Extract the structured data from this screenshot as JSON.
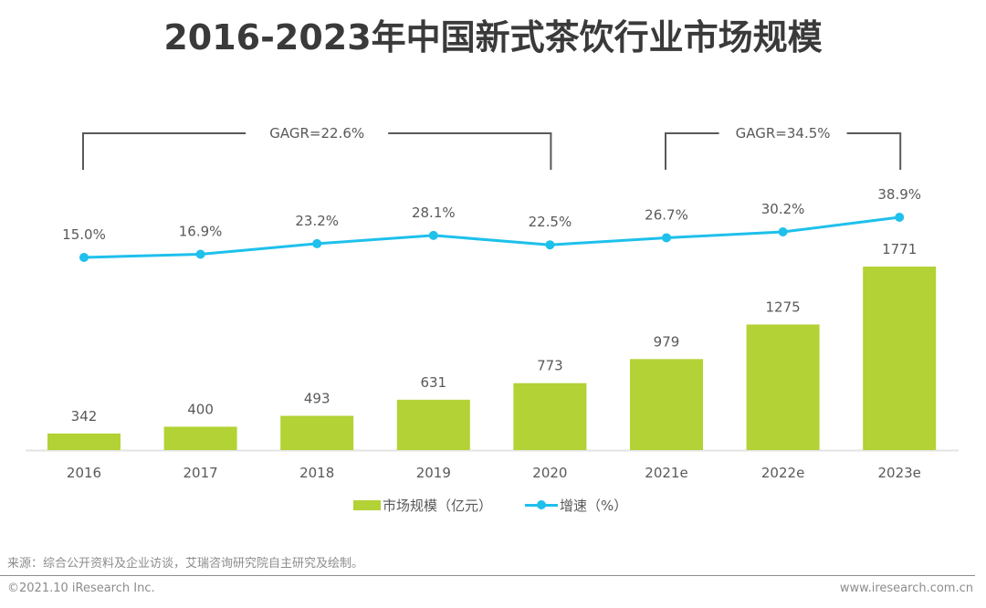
{
  "title": "2016-2023年中国新式茶饮行业市场规模",
  "chart_data": {
    "type": "bar",
    "title": "2016-2023年中国新式茶饮行业市场规模",
    "categories": [
      "2016",
      "2017",
      "2018",
      "2019",
      "2020",
      "2021e",
      "2022e",
      "2023e"
    ],
    "series": [
      {
        "name": "市场规模（亿元）",
        "type": "bar",
        "color": "#b2d235",
        "values": [
          342,
          400,
          493,
          631,
          773,
          979,
          1275,
          1771
        ],
        "labels": [
          "342",
          "400",
          "493",
          "631",
          "773",
          "979",
          "1275",
          "1771"
        ]
      },
      {
        "name": "增速（%）",
        "type": "line",
        "color": "#1ec0ec",
        "values": [
          15.0,
          16.9,
          23.2,
          28.1,
          22.5,
          26.7,
          30.2,
          38.9
        ],
        "labels": [
          "15.0%",
          "16.9%",
          "23.2%",
          "28.1%",
          "22.5%",
          "26.7%",
          "30.2%",
          "38.9%"
        ]
      }
    ],
    "bar_axis_range": [
      200,
      1771
    ],
    "line_axis_range": [
      15.0,
      38.9
    ],
    "annotations": [
      {
        "text": "GAGR=22.6%",
        "from": "2016",
        "to": "2020"
      },
      {
        "text": "GAGR=34.5%",
        "from": "2021e",
        "to": "2023e"
      }
    ],
    "xlabel": "",
    "ylabel": "",
    "grid": false,
    "legend": "bottom-center"
  },
  "legend": {
    "bar_label": "市场规模（亿元）",
    "line_label": "增速（%）"
  },
  "footer": {
    "source": "来源：综合公开资料及企业访谈，艾瑞咨询研究院自主研究及绘制。",
    "copyright": "©2021.10 iResearch Inc.",
    "website": "www.iresearch.com.cn"
  }
}
